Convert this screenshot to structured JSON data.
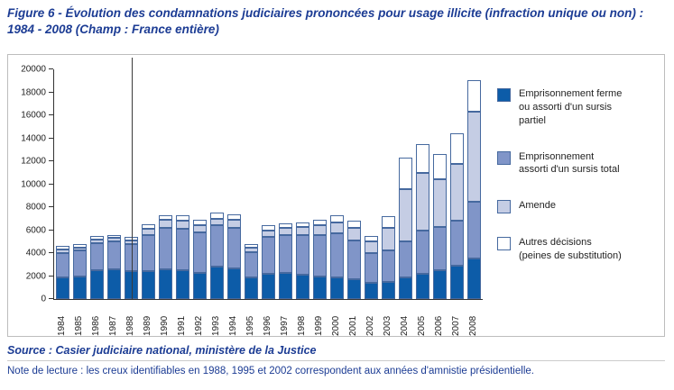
{
  "figure": {
    "title": "Figure 6 - Évolution des condamnations judiciaires prononcées pour usage illicite (infraction unique ou non) : 1984 - 2008 (Champ : France entière)",
    "source": "Source : Casier judiciaire national, ministère de la Justice",
    "note": "Note de lecture : les creux identifiables en 1988, 1995 et 2002 correspondent aux années d'amnistie présidentielle."
  },
  "colors": {
    "accent_blue": "#1c3c94",
    "axis": "#333333",
    "bar_border": "#46699f",
    "box_border": "#bdbdbd"
  },
  "chart_data": {
    "type": "bar",
    "stacked": true,
    "title": "Évolution des condamnations judiciaires prononcées pour usage illicite, 1984-2008",
    "xlabel": "",
    "ylabel": "",
    "ylim": [
      0,
      20000
    ],
    "ytick_step": 2000,
    "grid": false,
    "legend_position": "right",
    "amnesty_line_category": "1988",
    "categories": [
      "1984",
      "1985",
      "1986",
      "1987",
      "1988",
      "1989",
      "1990",
      "1991",
      "1992",
      "1993",
      "1994",
      "1995",
      "1996",
      "1997",
      "1998",
      "1999",
      "2000",
      "2001",
      "2002",
      "2003",
      "2004",
      "2005",
      "2006",
      "2007",
      "2008"
    ],
    "series": [
      {
        "name": "Emprisonnement ferme ou assorti d'un sursis partiel",
        "color": "#0d5ca8",
        "values": [
          1900,
          2000,
          2500,
          2600,
          2400,
          2400,
          2600,
          2500,
          2300,
          2800,
          2700,
          1900,
          2200,
          2300,
          2100,
          2000,
          1900,
          1700,
          1400,
          1500,
          1900,
          2200,
          2500,
          2900,
          3500
        ]
      },
      {
        "name": "Emprisonnement assorti d'un sursis total",
        "color": "#8095c8",
        "values": [
          2100,
          2200,
          2400,
          2400,
          2400,
          3200,
          3600,
          3600,
          3500,
          3600,
          3500,
          2200,
          3200,
          3300,
          3500,
          3600,
          3800,
          3400,
          2600,
          2700,
          3100,
          3800,
          3800,
          3900,
          5000
        ]
      },
      {
        "name": "Amende",
        "color": "#c5cde4",
        "values": [
          300,
          300,
          300,
          300,
          300,
          500,
          700,
          700,
          600,
          600,
          700,
          400,
          600,
          600,
          700,
          800,
          1000,
          1100,
          1000,
          2000,
          4600,
          5000,
          4100,
          5000,
          7800
        ]
      },
      {
        "name": "Autres décisions (peines de substitution)",
        "color": "#ffffff",
        "values": [
          300,
          300,
          300,
          300,
          300,
          400,
          400,
          500,
          500,
          500,
          500,
          300,
          400,
          400,
          400,
          500,
          600,
          600,
          500,
          1000,
          2700,
          2500,
          2200,
          2600,
          2800
        ]
      }
    ]
  }
}
